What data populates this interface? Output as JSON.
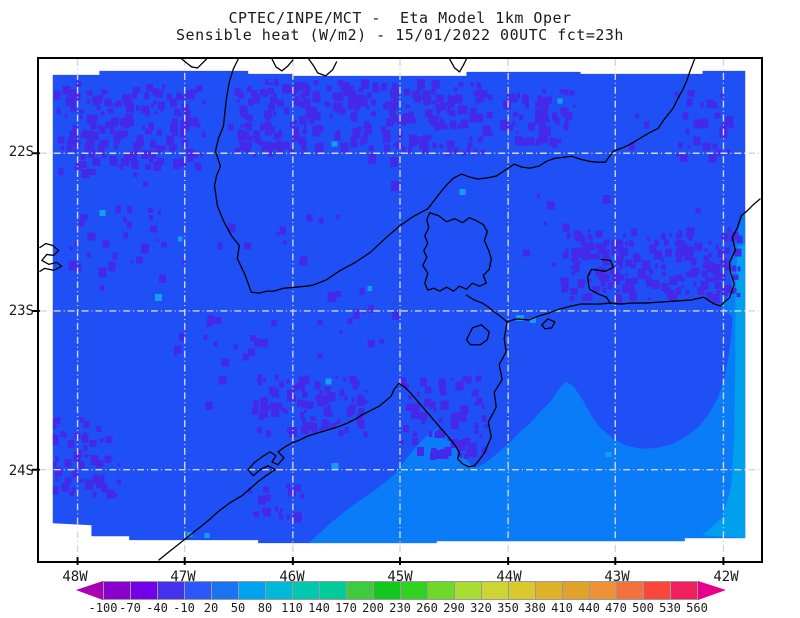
{
  "title": {
    "line1": "CPTEC/INPE/MCT -  Eta Model 1km Oper",
    "line2": "Sensible heat (W/m2) - 15/01/2022 00UTC fct=23h"
  },
  "map": {
    "lat_labels": [
      "22S",
      "23S",
      "24S"
    ],
    "lon_labels": [
      "48W",
      "47W",
      "46W",
      "45W",
      "44W",
      "43W",
      "42W"
    ]
  },
  "colorbar": {
    "values": [
      "-100",
      "-70",
      "-40",
      "-10",
      "20",
      "50",
      "80",
      "110",
      "140",
      "170",
      "200",
      "230",
      "260",
      "290",
      "320",
      "350",
      "380",
      "410",
      "440",
      "470",
      "500",
      "530",
      "560"
    ],
    "cell_colors": [
      "#8a00cc",
      "#7300e6",
      "#4433ee",
      "#2a58fa",
      "#1a74f2",
      "#00a2f2",
      "#00b9d9",
      "#00c8ae",
      "#00cc99",
      "#3ecb40",
      "#12c81e",
      "#32d222",
      "#6ed82c",
      "#aadd33",
      "#cdd535",
      "#d9c82e",
      "#deb22a",
      "#e0a22b",
      "#ee9238",
      "#f4713c",
      "#f9473c",
      "#f02060"
    ],
    "left_arrow_color": "#aa00b4",
    "right_arrow_color": "#e6008c"
  },
  "map_colors": {
    "land": "#1e50f5",
    "negative_patch": "#4429e8",
    "ocean": "#0b7cf8",
    "coastal_water": "#00a0ef",
    "lake": "#14a0ee"
  }
}
